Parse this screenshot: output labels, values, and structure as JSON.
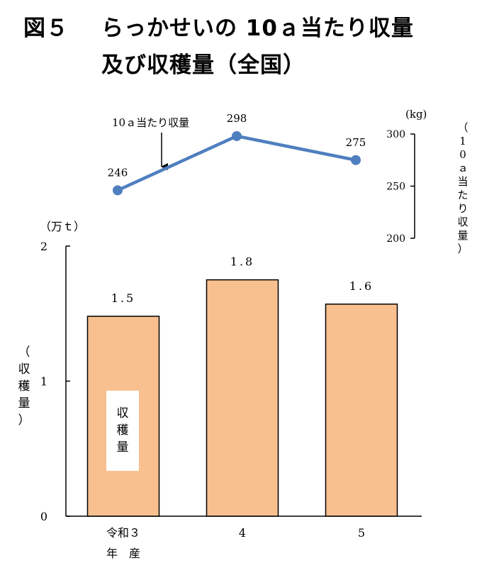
{
  "figure": {
    "number": "図５",
    "title_line1": "らっかせいの 10ａ当たり収量",
    "title_line2": "及び収穫量（全国）"
  },
  "chart_data": [
    {
      "type": "line",
      "categories": [
        "令和３ 年 産",
        "4",
        "5"
      ],
      "series": [
        {
          "name": "10ａ当たり収量",
          "values": [
            246,
            298,
            275
          ]
        }
      ],
      "data_labels": [
        "246",
        "298",
        "275"
      ],
      "unit": "(kg)",
      "ylabel": "（10ａ当たり収量）",
      "ylim": [
        200,
        300
      ],
      "yticks": [
        "200",
        "250",
        "300"
      ],
      "annotation": "10ａ当たり収量",
      "color": "#4f7fbf"
    },
    {
      "type": "bar",
      "categories": [
        "令和３",
        "4",
        "5"
      ],
      "category_sublabel": "年　産",
      "series": [
        {
          "name": "収穫量",
          "values": [
            1.48,
            1.75,
            1.57
          ]
        }
      ],
      "data_labels": [
        "1.5",
        "1.8",
        "1.6"
      ],
      "unit": "（万ｔ）",
      "ylabel": "（収穫量）",
      "ylim": [
        0,
        2
      ],
      "yticks": [
        "0",
        "1",
        "2"
      ],
      "inner_label": "収穫量",
      "color": "#f8c08f"
    }
  ]
}
